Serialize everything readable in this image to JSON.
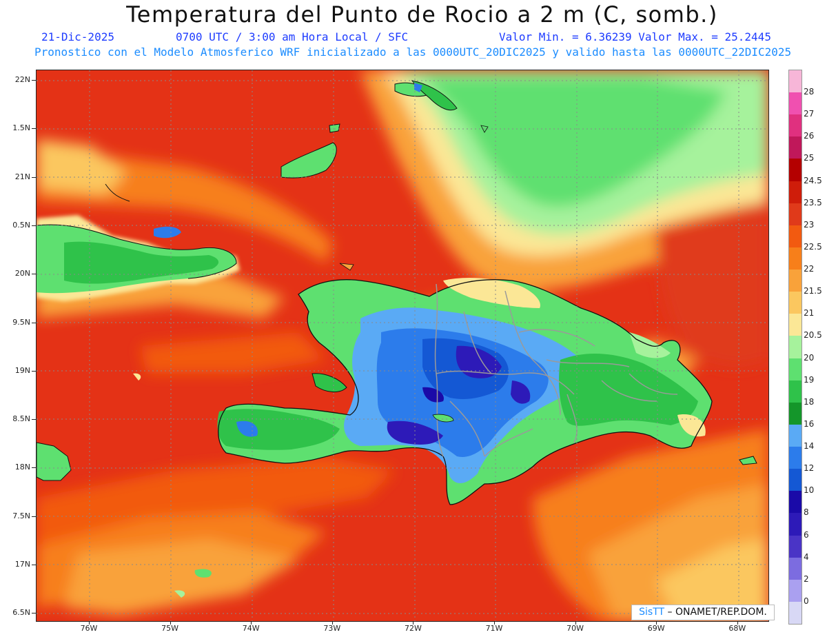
{
  "title": "Temperatura del Punto de Rocio a 2 m (C, somb.)",
  "date": "21-Dic-2025",
  "time_info": "0700 UTC / 3:00 am Hora Local / SFC",
  "min_max": "Valor Min. = 6.36239  Valor Max. = 25.2445",
  "forecast_note": "Pronostico con el Modelo Atmosferico WRF inicializado a las 0000UTC_20DIC2025 y valido hasta las  0000UTC_22DIC2025",
  "credit": {
    "brand": "SisTT",
    "text": "– ONAMET/REP.DOM."
  },
  "lat_labels": [
    "22N",
    "1.5N",
    "21N",
    "0.5N",
    "20N",
    "9.5N",
    "19N",
    "8.5N",
    "18N",
    "7.5N",
    "17N",
    "6.5N"
  ],
  "lon_labels": [
    "76W",
    "75W",
    "74W",
    "73W",
    "72W",
    "71W",
    "70W",
    "69W",
    "68W"
  ],
  "colorbar": {
    "labels": [
      "28",
      "27",
      "26",
      "25",
      "24.5",
      "23.5",
      "23",
      "22.5",
      "22",
      "21.5",
      "21",
      "20.5",
      "20",
      "19",
      "18",
      "16",
      "14",
      "12",
      "10",
      "8",
      "6",
      "4",
      "2",
      "0"
    ],
    "colors": [
      "#f7b6d8",
      "#f050b0",
      "#e0307f",
      "#c0185a",
      "#b40000",
      "#cf1d0a",
      "#e03a1a",
      "#f25a10",
      "#f77f1a",
      "#f9a23a",
      "#fbc75f",
      "#fbe796",
      "#a6f29c",
      "#5ee070",
      "#2fc24a",
      "#14962a",
      "#5aaaf5",
      "#2c7ceb",
      "#1458d4",
      "#1a0aa8",
      "#2d1ab8",
      "#4a34c6",
      "#7c6ce0",
      "#aaa0f0",
      "#d8d8f5"
    ]
  }
}
